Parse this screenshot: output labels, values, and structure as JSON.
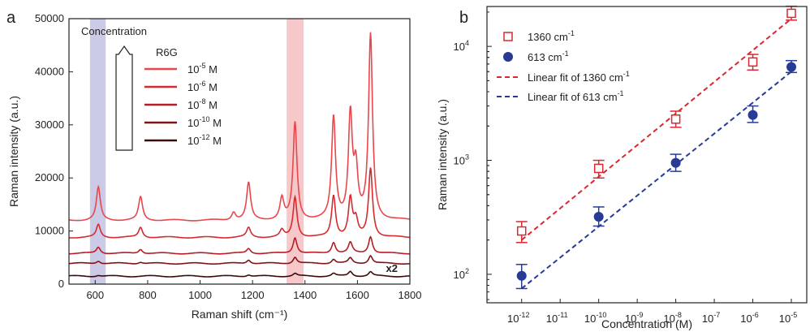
{
  "chart_data": [
    {
      "panel_label": "a",
      "type": "line",
      "xlabel": "Raman shift (cm⁻¹)",
      "ylabel": "Raman intensity (a.u.)",
      "xlim": [
        500,
        1800
      ],
      "ylim": [
        0,
        50000
      ],
      "xticks": [
        600,
        800,
        1000,
        1200,
        1400,
        1600,
        1800
      ],
      "yticks": [
        0,
        10000,
        20000,
        30000,
        40000,
        50000
      ],
      "highlight_bands": [
        {
          "x": [
            580,
            640
          ],
          "color": "#b9b9e0"
        },
        {
          "x": [
            1330,
            1395
          ],
          "color": "#f4b5b8"
        }
      ],
      "annotations": {
        "concentration": "Concentration",
        "r6g": "R6G",
        "x2": "x2"
      },
      "series": [
        {
          "name": "10",
          "exp": "-5",
          "unit": "M",
          "color": "#e8474c",
          "baseline": 12000,
          "peaks": [
            [
              612,
              6200
            ],
            [
              773,
              4400
            ],
            [
              1128,
              1500
            ],
            [
              1185,
              7000
            ],
            [
              1312,
              4000
            ],
            [
              1362,
              18300
            ],
            [
              1509,
              19300
            ],
            [
              1573,
              19500
            ],
            [
              1594,
              9000
            ],
            [
              1650,
              34800
            ]
          ]
        },
        {
          "name": "10",
          "exp": "-6",
          "unit": "M",
          "color": "#d42b2f",
          "baseline": 8800,
          "peaks": [
            [
              612,
              2400
            ],
            [
              773,
              1900
            ],
            [
              1185,
              1800
            ],
            [
              1312,
              1300
            ],
            [
              1362,
              7600
            ],
            [
              1509,
              7800
            ],
            [
              1573,
              7200
            ],
            [
              1594,
              3000
            ],
            [
              1650,
              13000
            ]
          ]
        },
        {
          "name": "10",
          "exp": "-8",
          "unit": "M",
          "color": "#b61e26",
          "baseline": 5800,
          "peaks": [
            [
              612,
              1200
            ],
            [
              773,
              800
            ],
            [
              1185,
              900
            ],
            [
              1362,
              3000
            ],
            [
              1509,
              2100
            ],
            [
              1573,
              2000
            ],
            [
              1650,
              3200
            ]
          ]
        },
        {
          "name": "10",
          "exp": "-10",
          "unit": "M",
          "color": "#7e1418",
          "baseline": 3900,
          "peaks": [
            [
              612,
              500
            ],
            [
              773,
              300
            ],
            [
              1185,
              700
            ],
            [
              1362,
              1200
            ],
            [
              1509,
              800
            ],
            [
              1573,
              1000
            ],
            [
              1650,
              1500
            ]
          ]
        },
        {
          "name": "10",
          "exp": "-12",
          "unit": "M",
          "color": "#3c0a0c",
          "baseline": 1500,
          "peaks": [
            [
              612,
              200
            ],
            [
              1185,
              300
            ],
            [
              1362,
              500
            ],
            [
              1509,
              500
            ],
            [
              1573,
              900
            ],
            [
              1650,
              800
            ]
          ]
        }
      ]
    },
    {
      "panel_label": "b",
      "type": "scatter",
      "xlabel": "Concentration (M)",
      "ylabel": "Raman intensity (a.u.)",
      "xscale": "log",
      "yscale": "log",
      "xlim_exp": [
        -12.9,
        -4.6
      ],
      "ylim_exp": [
        1.75,
        4.35
      ],
      "xticks_exp": [
        "-12",
        "-11",
        "-10",
        "-9",
        "-8",
        "-7",
        "-6",
        "-5"
      ],
      "yticks_exp": [
        "2",
        "3",
        "4"
      ],
      "x": [
        "1e-12",
        "1e-10",
        "1e-8",
        "1e-6",
        "1e-5"
      ],
      "series": [
        {
          "name": "1360 cm",
          "sup": "-1",
          "marker": "open-square",
          "color": "#d9282f",
          "values": [
            240,
            850,
            2300,
            7300,
            19500
          ],
          "err_low": [
            190,
            700,
            1950,
            6200,
            17000
          ],
          "err_high": [
            290,
            1000,
            2700,
            8500,
            22500
          ]
        },
        {
          "name": "613 cm",
          "sup": "-1",
          "marker": "filled-circle",
          "color": "#273a96",
          "values": [
            97,
            320,
            950,
            2500,
            6600
          ],
          "err_low": [
            75,
            265,
            800,
            2150,
            5900
          ],
          "err_high": [
            122,
            390,
            1130,
            3000,
            7500
          ]
        }
      ],
      "fits": [
        {
          "name": "Linear fit of 1360 cm",
          "sup": "-1",
          "color": "#d9282f",
          "from": [
            -12,
            200
          ],
          "to": [
            -5,
            17500
          ]
        },
        {
          "name": "Linear fit of 613 cm",
          "sup": "-1",
          "color": "#273a96",
          "from": [
            -12,
            75
          ],
          "to": [
            -5,
            6000
          ]
        }
      ]
    }
  ]
}
